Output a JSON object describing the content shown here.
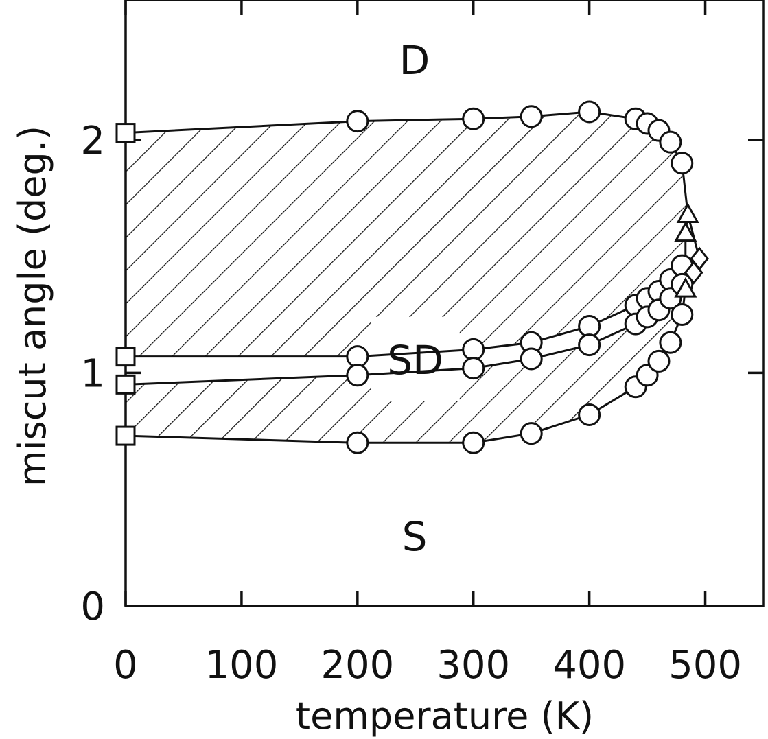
{
  "chart_data": {
    "type": "scatter",
    "xlabel": "temperature (K)",
    "ylabel": "miscut angle (deg.)",
    "xlim": [
      0,
      550
    ],
    "ylim": [
      0,
      2.6
    ],
    "x_ticks": [
      0,
      100,
      200,
      300,
      400,
      500
    ],
    "y_ticks": [
      0,
      1,
      2
    ],
    "x_tick_labels": [
      "0",
      "100",
      "200",
      "300",
      "400",
      "500"
    ],
    "y_tick_labels": [
      "0",
      "1",
      "2"
    ],
    "region_labels": {
      "upper": "D",
      "middle": "SD",
      "lower": "S"
    },
    "series": [
      {
        "marker": "circle",
        "role": "upper boundary",
        "points": [
          [
            200,
            2.08
          ],
          [
            300,
            2.09
          ],
          [
            350,
            2.1
          ],
          [
            400,
            2.12
          ],
          [
            440,
            2.09
          ],
          [
            450,
            2.07
          ],
          [
            460,
            2.04
          ],
          [
            470,
            1.99
          ],
          [
            480,
            1.9
          ]
        ]
      },
      {
        "marker": "circle",
        "role": "inner band upper edge",
        "points": [
          [
            200,
            1.07
          ],
          [
            300,
            1.1
          ],
          [
            350,
            1.13
          ],
          [
            400,
            1.2
          ],
          [
            440,
            1.29
          ],
          [
            450,
            1.32
          ],
          [
            460,
            1.35
          ],
          [
            470,
            1.4
          ],
          [
            480,
            1.46
          ]
        ]
      },
      {
        "marker": "circle",
        "role": "inner band lower edge",
        "points": [
          [
            200,
            0.99
          ],
          [
            300,
            1.02
          ],
          [
            350,
            1.06
          ],
          [
            400,
            1.12
          ],
          [
            440,
            1.21
          ],
          [
            450,
            1.24
          ],
          [
            460,
            1.27
          ],
          [
            470,
            1.32
          ],
          [
            480,
            1.38
          ]
        ]
      },
      {
        "marker": "circle",
        "role": "lower boundary",
        "points": [
          [
            200,
            0.7
          ],
          [
            300,
            0.7
          ],
          [
            350,
            0.74
          ],
          [
            400,
            0.82
          ],
          [
            440,
            0.94
          ],
          [
            450,
            0.99
          ],
          [
            460,
            1.05
          ],
          [
            470,
            1.13
          ],
          [
            480,
            1.25
          ]
        ]
      },
      {
        "marker": "square",
        "role": "T = 0 points",
        "points": [
          [
            0,
            2.03
          ],
          [
            0,
            1.07
          ],
          [
            0,
            0.95
          ],
          [
            0,
            0.73
          ]
        ]
      },
      {
        "marker": "triangle",
        "role": "triangles",
        "points": [
          [
            485,
            1.68
          ],
          [
            483,
            1.6
          ],
          [
            483,
            1.36
          ]
        ]
      },
      {
        "marker": "diamond",
        "role": "diamonds",
        "points": [
          [
            495,
            1.49
          ],
          [
            490,
            1.43
          ]
        ]
      }
    ]
  }
}
